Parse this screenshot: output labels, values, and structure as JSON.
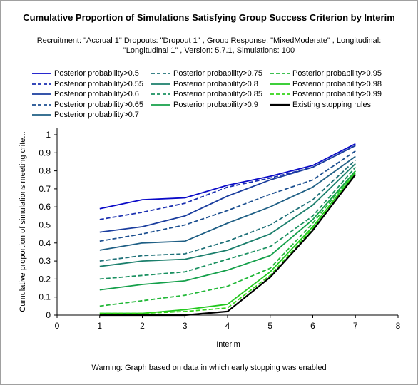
{
  "chart_data": {
    "type": "line",
    "title": "Cumulative Proportion of Simulations Satisfying Group Success Criterion by Interim",
    "subtitle_lines": [
      "Recruitment: \"Accrual 1\" Dropouts: \"Dropout 1\" , Group Response: \"MixedModerate\" , Longitudinal:",
      "\"Longitudinal 1\" , Version: 5.7.1, Simulations: 100"
    ],
    "xlabel": "Interim",
    "ylabel": "Cumulative proportion of simulations meeting crite...",
    "xlim": [
      0,
      8
    ],
    "ylim": [
      0,
      1
    ],
    "x_ticks": [
      "0",
      "1",
      "2",
      "3",
      "4",
      "5",
      "6",
      "7",
      "8"
    ],
    "y_ticks": [
      "0",
      "0.1",
      "0.2",
      "0.3",
      "0.4",
      "0.5",
      "0.6",
      "0.7",
      "0.8",
      "0.9",
      "1"
    ],
    "grid": false,
    "legend_position": "top",
    "x": [
      1,
      2,
      3,
      4,
      5,
      6,
      7
    ],
    "series": [
      {
        "name": "Posterior probability>0.5",
        "color": "#0a0ac8",
        "dash": "solid",
        "values": [
          0.59,
          0.64,
          0.65,
          0.72,
          0.77,
          0.83,
          0.95
        ]
      },
      {
        "name": "Posterior probability>0.55",
        "color": "#1a2fb0",
        "dash": "dashed",
        "values": [
          0.53,
          0.57,
          0.62,
          0.71,
          0.76,
          0.82,
          0.94
        ]
      },
      {
        "name": "Posterior probability>0.6",
        "color": "#1a3d9e",
        "dash": "solid",
        "values": [
          0.46,
          0.49,
          0.55,
          0.66,
          0.75,
          0.82,
          0.94
        ]
      },
      {
        "name": "Posterior probability>0.65",
        "color": "#1c4f90",
        "dash": "dashed",
        "values": [
          0.41,
          0.45,
          0.5,
          0.58,
          0.67,
          0.75,
          0.91
        ]
      },
      {
        "name": "Posterior probability>0.7",
        "color": "#1f5f85",
        "dash": "solid",
        "values": [
          0.36,
          0.4,
          0.41,
          0.51,
          0.6,
          0.71,
          0.88
        ]
      },
      {
        "name": "Posterior probability>0.75",
        "color": "#1e7078",
        "dash": "dashed",
        "values": [
          0.3,
          0.33,
          0.34,
          0.41,
          0.5,
          0.64,
          0.86
        ]
      },
      {
        "name": "Posterior probability>0.8",
        "color": "#1b7f6c",
        "dash": "solid",
        "values": [
          0.27,
          0.3,
          0.31,
          0.36,
          0.45,
          0.61,
          0.84
        ]
      },
      {
        "name": "Posterior probability>0.85",
        "color": "#1a9060",
        "dash": "dashed",
        "values": [
          0.2,
          0.22,
          0.24,
          0.31,
          0.38,
          0.55,
          0.82
        ]
      },
      {
        "name": "Posterior probability>0.9",
        "color": "#14a04a",
        "dash": "solid",
        "values": [
          0.14,
          0.17,
          0.19,
          0.25,
          0.33,
          0.53,
          0.8
        ]
      },
      {
        "name": "Posterior probability>0.95",
        "color": "#22b838",
        "dash": "dashed",
        "values": [
          0.05,
          0.08,
          0.11,
          0.16,
          0.26,
          0.51,
          0.8
        ]
      },
      {
        "name": "Posterior probability>0.98",
        "color": "#22c81e",
        "dash": "solid",
        "values": [
          0.01,
          0.01,
          0.03,
          0.06,
          0.24,
          0.49,
          0.79
        ]
      },
      {
        "name": "Posterior probability>0.99",
        "color": "#34d418",
        "dash": "dashed",
        "values": [
          0.01,
          0.01,
          0.02,
          0.04,
          0.22,
          0.48,
          0.79
        ]
      },
      {
        "name": "Existing stopping rules",
        "color": "#000000",
        "dash": "solid",
        "values": [
          0.0,
          0.0,
          0.0,
          0.02,
          0.21,
          0.47,
          0.78
        ]
      }
    ]
  },
  "footer_note": "Warning: Graph based on data in which early stopping was enabled"
}
